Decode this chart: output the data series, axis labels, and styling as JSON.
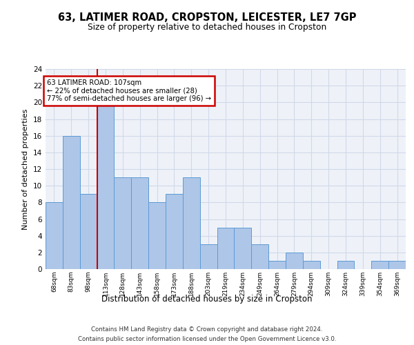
{
  "title": "63, LATIMER ROAD, CROPSTON, LEICESTER, LE7 7GP",
  "subtitle": "Size of property relative to detached houses in Cropston",
  "xlabel": "Distribution of detached houses by size in Cropston",
  "ylabel": "Number of detached properties",
  "categories": [
    "68sqm",
    "83sqm",
    "98sqm",
    "113sqm",
    "128sqm",
    "143sqm",
    "158sqm",
    "173sqm",
    "188sqm",
    "203sqm",
    "219sqm",
    "234sqm",
    "249sqm",
    "264sqm",
    "279sqm",
    "294sqm",
    "309sqm",
    "324sqm",
    "339sqm",
    "354sqm",
    "369sqm"
  ],
  "values": [
    8,
    16,
    9,
    20,
    11,
    11,
    8,
    9,
    11,
    3,
    5,
    5,
    3,
    1,
    2,
    1,
    0,
    1,
    0,
    1,
    1
  ],
  "bar_color": "#aec6e8",
  "bar_edge_color": "#5b9bd5",
  "reference_line_x": 2.5,
  "annotation_text": "63 LATIMER ROAD: 107sqm\n← 22% of detached houses are smaller (28)\n77% of semi-detached houses are larger (96) →",
  "annotation_box_color": "#ffffff",
  "annotation_box_edge_color": "#cc0000",
  "ylim": [
    0,
    24
  ],
  "yticks": [
    0,
    2,
    4,
    6,
    8,
    10,
    12,
    14,
    16,
    18,
    20,
    22,
    24
  ],
  "ref_line_color": "#cc0000",
  "grid_color": "#d0d8e8",
  "background_color": "#eef2f8",
  "footer_line1": "Contains HM Land Registry data © Crown copyright and database right 2024.",
  "footer_line2": "Contains public sector information licensed under the Open Government Licence v3.0."
}
